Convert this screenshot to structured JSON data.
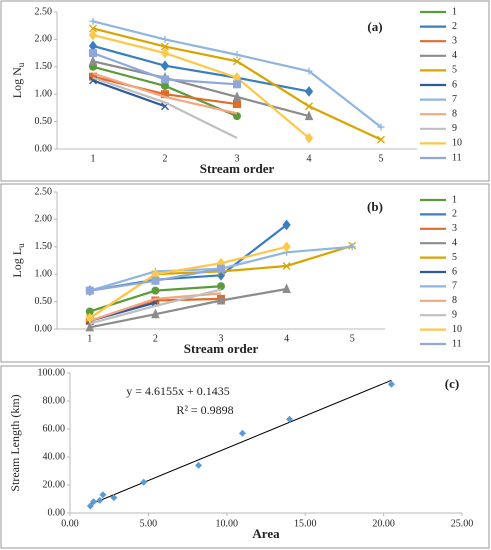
{
  "chart_data": [
    {
      "type": "line",
      "title": "(a)",
      "x_label": "Stream order",
      "y_label": "Log N",
      "y_label_sub": "u",
      "categories": [
        "1",
        "2",
        "3",
        "4",
        "5"
      ],
      "ylim": [
        0,
        2.5
      ],
      "yticks": [
        {
          "value": 0,
          "label": "0.00"
        },
        {
          "value": 0.5,
          "label": "0.50"
        },
        {
          "value": 1,
          "label": "1.00"
        },
        {
          "value": 1.5,
          "label": "1.50"
        },
        {
          "value": 2,
          "label": "2.00"
        },
        {
          "value": 2.5,
          "label": "2.50"
        }
      ],
      "grid": false,
      "legend": "right",
      "series": [
        {
          "name": "1",
          "color": "#5b9b3c",
          "marker": "circle",
          "values": [
            1.5,
            1.15,
            0.6,
            null,
            null
          ]
        },
        {
          "name": "2",
          "color": "#3a7ebf",
          "marker": "diamond",
          "values": [
            1.88,
            1.52,
            1.3,
            1.05,
            null
          ]
        },
        {
          "name": "3",
          "color": "#e06c2c",
          "marker": "square",
          "values": [
            1.32,
            1.0,
            0.82,
            null,
            null
          ]
        },
        {
          "name": "4",
          "color": "#8c8c8c",
          "marker": "triangle",
          "values": [
            1.6,
            1.3,
            0.95,
            0.6,
            null
          ]
        },
        {
          "name": "5",
          "color": "#d9a400",
          "marker": "x",
          "values": [
            2.2,
            1.87,
            1.6,
            0.78,
            0.17
          ]
        },
        {
          "name": "6",
          "color": "#2e5a9c",
          "marker": "x",
          "values": [
            1.25,
            0.78,
            null,
            null,
            null
          ]
        },
        {
          "name": "7",
          "color": "#8fb5e0",
          "marker": "plus",
          "values": [
            2.33,
            2.0,
            1.72,
            1.42,
            0.4
          ]
        },
        {
          "name": "8",
          "color": "#f4a582",
          "marker": "none",
          "values": [
            1.38,
            0.95,
            0.65,
            null,
            null
          ]
        },
        {
          "name": "9",
          "color": "#bfbfbf",
          "marker": "none",
          "values": [
            1.3,
            0.85,
            0.2,
            null,
            null
          ]
        },
        {
          "name": "10",
          "color": "#fcc84a",
          "marker": "diamond",
          "values": [
            2.08,
            1.75,
            1.3,
            0.2,
            null
          ]
        },
        {
          "name": "11",
          "color": "#8fa8dc",
          "marker": "square",
          "values": [
            1.75,
            1.27,
            1.18,
            null,
            null
          ]
        }
      ]
    },
    {
      "type": "line",
      "title": "(b)",
      "x_label": "Stream order",
      "y_label": "Log L",
      "y_label_sub": "u",
      "categories": [
        "1",
        "2",
        "3",
        "4",
        "5"
      ],
      "ylim": [
        0,
        2.5
      ],
      "yticks": [
        {
          "value": 0,
          "label": "0.00"
        },
        {
          "value": 0.5,
          "label": "0.50"
        },
        {
          "value": 1,
          "label": "1.00"
        },
        {
          "value": 1.5,
          "label": "1.50"
        },
        {
          "value": 2,
          "label": "2.00"
        },
        {
          "value": 2.5,
          "label": "2.50"
        }
      ],
      "grid": false,
      "legend": "right",
      "series": [
        {
          "name": "1",
          "color": "#5b9b3c",
          "marker": "circle",
          "values": [
            0.32,
            0.7,
            0.78,
            null,
            null
          ]
        },
        {
          "name": "2",
          "color": "#3a7ebf",
          "marker": "diamond",
          "values": [
            0.7,
            0.9,
            0.98,
            1.9,
            null
          ]
        },
        {
          "name": "3",
          "color": "#e06c2c",
          "marker": "square",
          "values": [
            0.15,
            0.52,
            0.55,
            null,
            null
          ]
        },
        {
          "name": "4",
          "color": "#8c8c8c",
          "marker": "triangle",
          "values": [
            0.03,
            0.27,
            0.52,
            0.73,
            null
          ]
        },
        {
          "name": "5",
          "color": "#d9a400",
          "marker": "x",
          "values": [
            0.2,
            1.0,
            1.05,
            1.15,
            1.52
          ]
        },
        {
          "name": "6",
          "color": "#2e5a9c",
          "marker": "x",
          "values": [
            0.15,
            0.48,
            null,
            null,
            null
          ]
        },
        {
          "name": "7",
          "color": "#8fb5e0",
          "marker": "plus",
          "values": [
            0.7,
            1.05,
            1.1,
            1.4,
            1.5
          ]
        },
        {
          "name": "8",
          "color": "#f4a582",
          "marker": "none",
          "values": [
            0.15,
            0.55,
            0.65,
            null,
            null
          ]
        },
        {
          "name": "9",
          "color": "#bfbfbf",
          "marker": "none",
          "values": [
            0.1,
            0.42,
            0.72,
            null,
            null
          ]
        },
        {
          "name": "10",
          "color": "#fcc84a",
          "marker": "diamond",
          "values": [
            0.2,
            1.0,
            1.2,
            1.5,
            null
          ]
        },
        {
          "name": "11",
          "color": "#8fa8dc",
          "marker": "square",
          "values": [
            0.7,
            0.88,
            1.1,
            null,
            null
          ]
        }
      ]
    },
    {
      "type": "scatter",
      "title": "(c)",
      "x_label": "Area",
      "y_label": "Stream Length (km)",
      "x": [
        1.3,
        1.5,
        1.9,
        2.1,
        2.8,
        4.7,
        8.2,
        11,
        14,
        20.5
      ],
      "values": [
        5,
        8,
        9,
        13,
        11,
        22,
        34,
        57,
        67,
        92
      ],
      "color": "#5b9bd5",
      "xlim": [
        0,
        25
      ],
      "xticks": [
        {
          "value": 0,
          "label": "0.00"
        },
        {
          "value": 5,
          "label": "5.00"
        },
        {
          "value": 10,
          "label": "10.00"
        },
        {
          "value": 15,
          "label": "15.00"
        },
        {
          "value": 20,
          "label": "20.00"
        },
        {
          "value": 25,
          "label": "25.00"
        }
      ],
      "ylim": [
        0,
        100
      ],
      "yticks": [
        {
          "value": 0,
          "label": "0.00"
        },
        {
          "value": 20,
          "label": "20.00"
        },
        {
          "value": 40,
          "label": "40.00"
        },
        {
          "value": 60,
          "label": "60.00"
        },
        {
          "value": 80,
          "label": "80.00"
        },
        {
          "value": 100,
          "label": "100.00"
        }
      ],
      "trendline": {
        "label": "y = 4.6155x + 0.1435",
        "slope": 4.6155,
        "intercept": 0.1435,
        "r2_label": "R² = 0.9898"
      }
    }
  ]
}
